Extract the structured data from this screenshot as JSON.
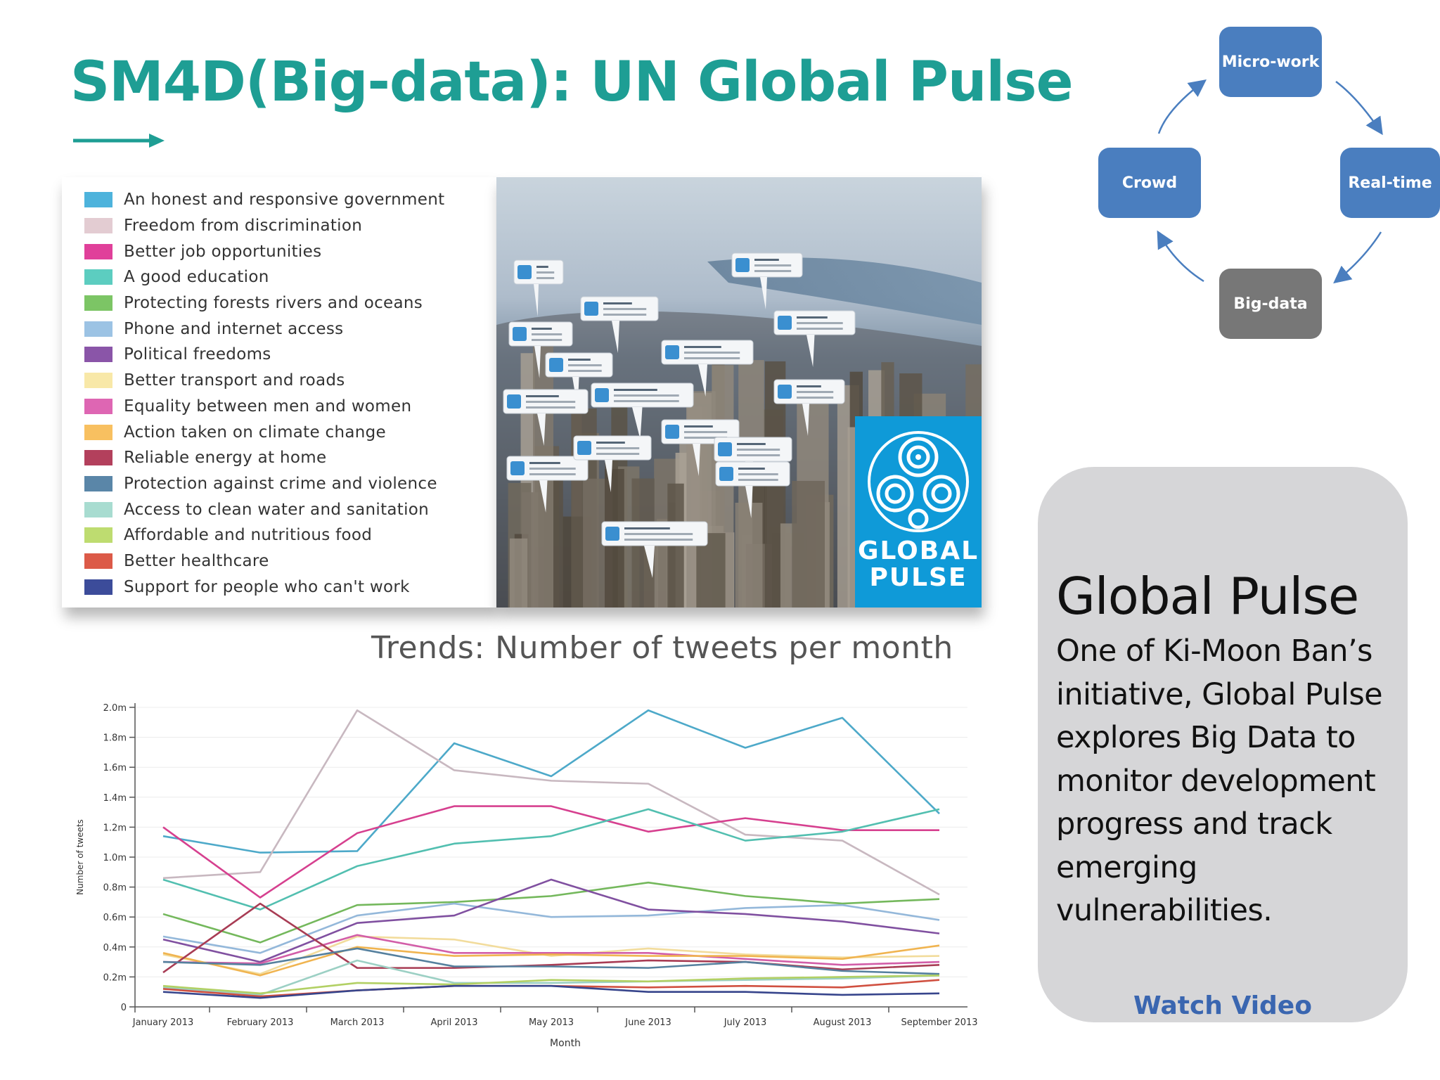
{
  "slide": {
    "title": "SM4D(Big-data): UN Global Pulse",
    "accent_color": "#1e9e94"
  },
  "legend": {
    "items": [
      {
        "label": "An honest and responsive government",
        "color": "#4db3dc"
      },
      {
        "label": "Freedom from discrimination",
        "color": "#e3ccd2"
      },
      {
        "label": "Better job opportunities",
        "color": "#e0409a"
      },
      {
        "label": "A good education",
        "color": "#5ccdc0"
      },
      {
        "label": "Protecting forests rivers and oceans",
        "color": "#7cc565"
      },
      {
        "label": "Phone and internet access",
        "color": "#9cc3e4"
      },
      {
        "label": "Political freedoms",
        "color": "#8a55a8"
      },
      {
        "label": "Better transport and roads",
        "color": "#f8e8a8"
      },
      {
        "label": "Equality between men and women",
        "color": "#de66b3"
      },
      {
        "label": "Action taken on climate change",
        "color": "#f8c060"
      },
      {
        "label": "Reliable energy at home",
        "color": "#b3405c"
      },
      {
        "label": "Protection against crime and violence",
        "color": "#5a86a8"
      },
      {
        "label": "Access to clean water and sanitation",
        "color": "#a8dcd0"
      },
      {
        "label": "Affordable and nutritious food",
        "color": "#bedc70"
      },
      {
        "label": "Better healthcare",
        "color": "#dc5a48"
      },
      {
        "label": "Support for people who can't work",
        "color": "#3c4c9a"
      }
    ]
  },
  "photo": {
    "brand_line1": "GLOBAL",
    "brand_line2": "PULSE",
    "brand_color": "#0f9ad8",
    "tweet_icon": "twitter-bird-icon"
  },
  "chart_title": "Trends: Number of tweets per month",
  "chart_data": {
    "type": "line",
    "xlabel": "Month",
    "ylabel": "Number of tweets",
    "ylim": [
      0,
      2.0
    ],
    "y_ticks": [
      "0",
      "0.2m",
      "0.4m",
      "0.6m",
      "0.8m",
      "1.0m",
      "1.2m",
      "1.4m",
      "1.6m",
      "1.8m",
      "2.0m"
    ],
    "grid": true,
    "categories": [
      "January 2013",
      "February 2013",
      "March 2013",
      "April 2013",
      "May 2013",
      "June 2013",
      "July 2013",
      "August 2013",
      "September 2013"
    ],
    "series": [
      {
        "color": "#4da9c9",
        "values": [
          1.14,
          1.03,
          1.04,
          1.76,
          1.54,
          1.98,
          1.73,
          1.93,
          1.29
        ]
      },
      {
        "color": "#c8b8c0",
        "values": [
          0.86,
          0.9,
          1.98,
          1.58,
          1.51,
          1.49,
          1.15,
          1.11,
          0.75
        ]
      },
      {
        "color": "#d6408f",
        "values": [
          1.2,
          0.73,
          1.16,
          1.34,
          1.34,
          1.17,
          1.26,
          1.18,
          1.18
        ]
      },
      {
        "color": "#52bfb0",
        "values": [
          0.85,
          0.65,
          0.94,
          1.09,
          1.14,
          1.32,
          1.11,
          1.17,
          1.32
        ]
      },
      {
        "color": "#74b85c",
        "values": [
          0.62,
          0.43,
          0.68,
          0.7,
          0.74,
          0.83,
          0.74,
          0.69,
          0.72
        ]
      },
      {
        "color": "#94b8da",
        "values": [
          0.47,
          0.36,
          0.61,
          0.69,
          0.6,
          0.61,
          0.66,
          0.68,
          0.58
        ]
      },
      {
        "color": "#8050a0",
        "values": [
          0.45,
          0.3,
          0.56,
          0.61,
          0.85,
          0.65,
          0.62,
          0.57,
          0.49
        ]
      },
      {
        "color": "#f2dc9c",
        "values": [
          0.35,
          0.22,
          0.47,
          0.45,
          0.34,
          0.39,
          0.35,
          0.33,
          0.34
        ]
      },
      {
        "color": "#d25ea8",
        "values": [
          0.3,
          0.29,
          0.48,
          0.36,
          0.36,
          0.36,
          0.32,
          0.28,
          0.3
        ]
      },
      {
        "color": "#f0b450",
        "values": [
          0.36,
          0.21,
          0.4,
          0.34,
          0.35,
          0.34,
          0.34,
          0.32,
          0.41
        ]
      },
      {
        "color": "#a83c54",
        "values": [
          0.23,
          0.69,
          0.26,
          0.26,
          0.28,
          0.31,
          0.3,
          0.25,
          0.28
        ]
      },
      {
        "color": "#55809e",
        "values": [
          0.3,
          0.28,
          0.39,
          0.27,
          0.27,
          0.26,
          0.3,
          0.24,
          0.22
        ]
      },
      {
        "color": "#9cd0c4",
        "values": [
          0.13,
          0.08,
          0.31,
          0.16,
          0.16,
          0.17,
          0.18,
          0.19,
          0.21
        ]
      },
      {
        "color": "#b2d064",
        "values": [
          0.14,
          0.09,
          0.16,
          0.15,
          0.18,
          0.17,
          0.19,
          0.2,
          0.21
        ]
      },
      {
        "color": "#d05040",
        "values": [
          0.12,
          0.07,
          0.11,
          0.14,
          0.14,
          0.13,
          0.14,
          0.13,
          0.18
        ]
      },
      {
        "color": "#37458c",
        "values": [
          0.1,
          0.06,
          0.11,
          0.14,
          0.14,
          0.1,
          0.1,
          0.08,
          0.09
        ]
      }
    ]
  },
  "cycle": {
    "nodes": [
      "Micro-work",
      "Real-time",
      "Big-data",
      "Crowd"
    ],
    "node_color": "#4a7ebf",
    "highlight_color": "#777777"
  },
  "info_card": {
    "heading": "Global Pulse",
    "body": "One of Ki-Moon Ban’s initiative, Global Pulse explores Big Data to monitor development progress and track emerging vulnerabilities.",
    "link_label": "Watch Video"
  }
}
